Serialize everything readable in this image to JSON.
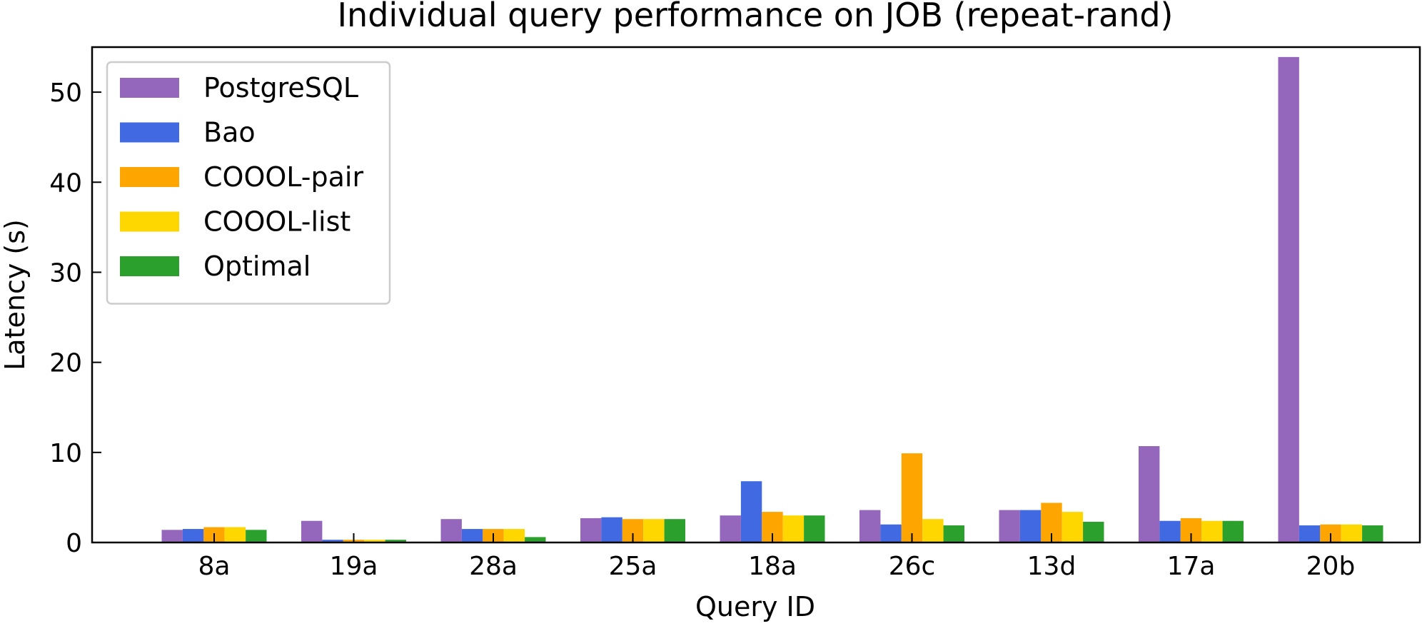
{
  "chart_data": {
    "type": "bar",
    "title": "Individual query performance on JOB (repeat-rand)",
    "xlabel": "Query ID",
    "ylabel": "Latency (s)",
    "categories": [
      "8a",
      "19a",
      "28a",
      "25a",
      "18a",
      "26c",
      "13d",
      "17a",
      "20b"
    ],
    "series": [
      {
        "name": "PostgreSQL",
        "color": "#9467bd",
        "values": [
          1.4,
          2.4,
          2.6,
          2.7,
          3.0,
          3.6,
          3.6,
          10.7,
          53.9
        ]
      },
      {
        "name": "Bao",
        "color": "#4169e1",
        "values": [
          1.5,
          0.3,
          1.5,
          2.8,
          6.8,
          2.0,
          3.6,
          2.4,
          1.9
        ]
      },
      {
        "name": "COOOL-pair",
        "color": "#ffa500",
        "values": [
          1.7,
          0.3,
          1.5,
          2.6,
          3.4,
          9.9,
          4.4,
          2.7,
          2.0
        ]
      },
      {
        "name": "COOOL-list",
        "color": "#ffd700",
        "values": [
          1.7,
          0.3,
          1.5,
          2.6,
          3.0,
          2.6,
          3.4,
          2.4,
          2.0
        ]
      },
      {
        "name": "Optimal",
        "color": "#2ca02c",
        "values": [
          1.4,
          0.3,
          0.6,
          2.6,
          3.0,
          1.9,
          2.3,
          2.4,
          1.9
        ]
      }
    ],
    "ylim": [
      0,
      55
    ],
    "yticks": [
      0,
      10,
      20,
      30,
      40,
      50
    ],
    "grid": false,
    "legend_position": "top-left"
  }
}
